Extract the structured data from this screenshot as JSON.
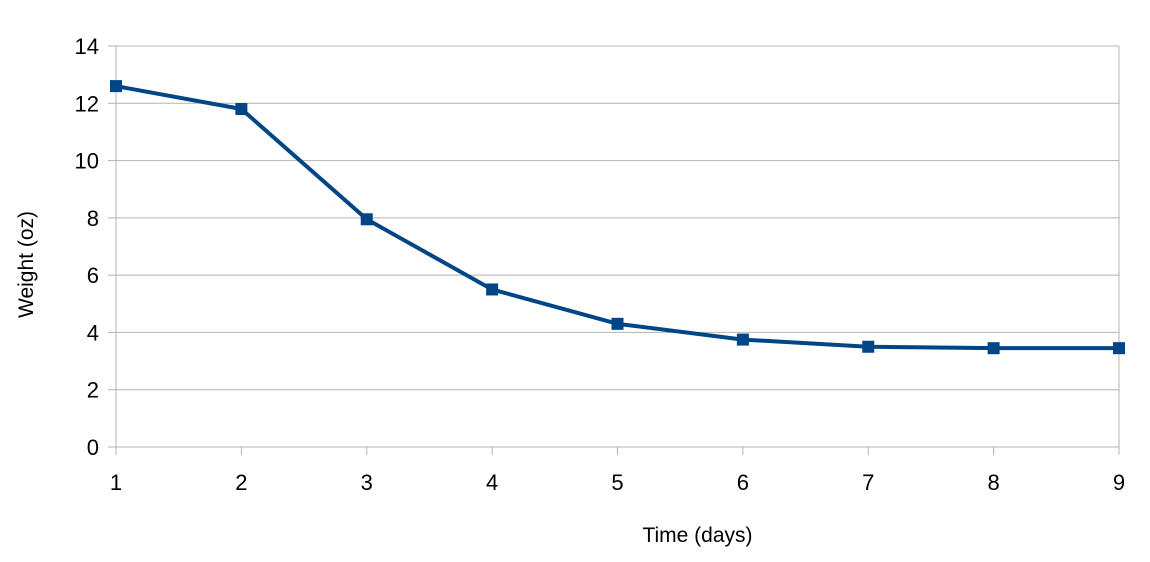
{
  "chart_data": {
    "type": "line",
    "title": "",
    "xlabel": "Time (days)",
    "ylabel": "Weight (oz)",
    "x": [
      1,
      2,
      3,
      4,
      5,
      6,
      7,
      8,
      9
    ],
    "xlim": [
      1,
      9
    ],
    "ylim": [
      0,
      14
    ],
    "yticks": [
      0,
      2,
      4,
      6,
      8,
      10,
      12,
      14
    ],
    "xticks": [
      1,
      2,
      3,
      4,
      5,
      6,
      7,
      8,
      9
    ],
    "grid": true,
    "legend": "none",
    "series": [
      {
        "values": [
          12.6,
          11.8,
          7.95,
          5.5,
          4.3,
          3.75,
          3.5,
          3.45,
          3.45
        ],
        "color": "#004586",
        "marker": "square"
      }
    ]
  }
}
